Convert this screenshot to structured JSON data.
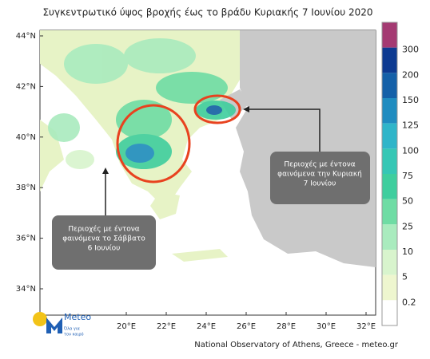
{
  "header": {
    "title": "Συγκεντρωτικό ύψος βροχής έως το βράδυ Κυριακής 7 Ιουνίου 2020"
  },
  "map": {
    "lat_labels": [
      "44°N",
      "42°N",
      "40°N",
      "38°N",
      "36°N",
      "34°N"
    ],
    "lon_labels": [
      "20°E",
      "22°E",
      "24°E",
      "26°E",
      "28°E",
      "30°E",
      "32°E"
    ]
  },
  "colorbar": {
    "levels": [
      {
        "label": "300",
        "color": "#a43a72"
      },
      {
        "label": "200",
        "color": "#0d3a91"
      },
      {
        "label": "150",
        "color": "#1460a8"
      },
      {
        "label": "125",
        "color": "#1f8cc0"
      },
      {
        "label": "100",
        "color": "#2fb5c9"
      },
      {
        "label": "75",
        "color": "#36c7b5"
      },
      {
        "label": "50",
        "color": "#3fce9e"
      },
      {
        "label": "25",
        "color": "#6fdca4"
      },
      {
        "label": "10",
        "color": "#a9ebbe"
      },
      {
        "label": "5",
        "color": "#d8f4cd"
      },
      {
        "label": "0.2",
        "color": "#eef6cf"
      }
    ],
    "bottom_color": "#ffffff"
  },
  "callouts": [
    {
      "lines": [
        "Περιοχές με έντονα",
        "φαινόμενα  την Κυριακή",
        "7 Ιουνίου"
      ]
    },
    {
      "lines": [
        "Περιοχές με έντονα",
        "φαινόμενα  το Σάββατο",
        "6 Ιουνίου"
      ]
    }
  ],
  "logo": {
    "name": "Meteo",
    "tagline": [
      "Όλα για",
      "τον καιρό"
    ]
  },
  "footer": {
    "credit": "National Observatory of Athens, Greece - meteo.gr"
  }
}
